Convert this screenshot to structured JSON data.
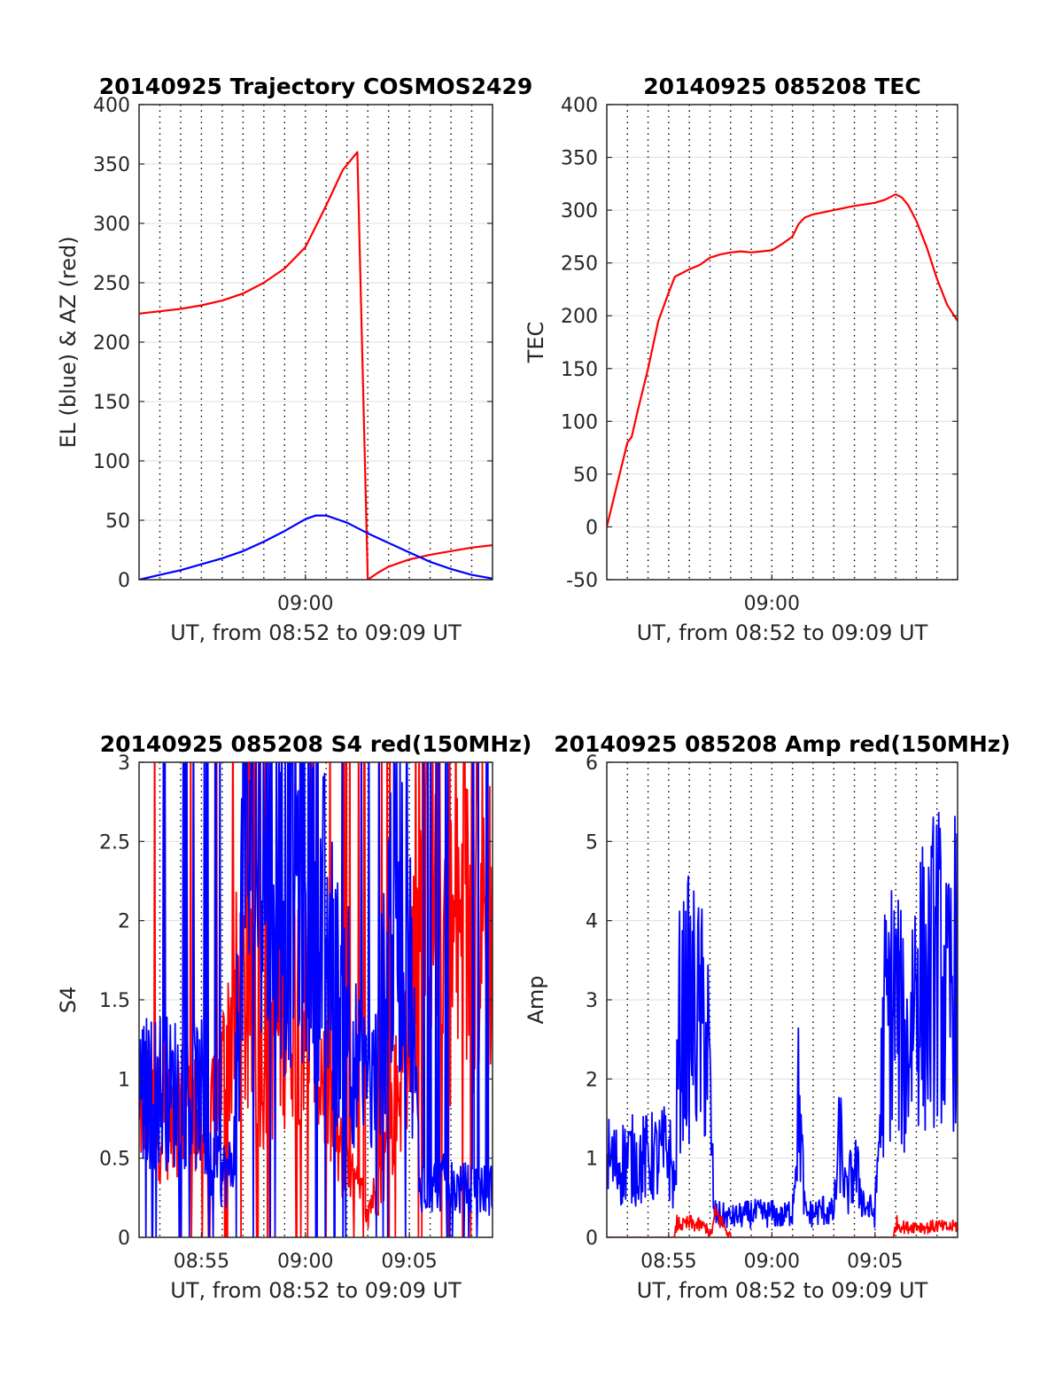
{
  "figure_title": "",
  "chart_data": [
    {
      "id": "trajectory",
      "type": "line",
      "title": "20140925 Trajectory COSMOS2429",
      "xlabel": "UT, from 08:52 to 09:09 UT",
      "ylabel": "EL (blue) & AZ (red)",
      "x_unit": "minutes since 08:52 UT",
      "xlim": [
        0,
        17
      ],
      "ylim": [
        0,
        400
      ],
      "yticks": [
        0,
        50,
        100,
        150,
        200,
        250,
        300,
        350,
        400
      ],
      "xtick_labels": [
        {
          "x": 8,
          "label": "09:00"
        }
      ],
      "grid": "on",
      "series": [
        {
          "color": "#ff0000",
          "x": [
            0,
            1,
            2,
            3,
            4,
            5,
            6,
            7,
            8,
            9,
            9.8,
            10.5,
            11,
            11.5,
            12,
            13,
            14,
            15,
            16,
            17
          ],
          "y": [
            224,
            226,
            228,
            231,
            235,
            241,
            250,
            262,
            280,
            315,
            345,
            360,
            0,
            6,
            11,
            17,
            21,
            24,
            27,
            29
          ]
        },
        {
          "color": "#0000ff",
          "x": [
            0,
            1,
            2,
            3,
            4,
            5,
            6,
            7,
            8,
            8.5,
            9,
            10,
            11,
            12,
            13,
            14,
            15,
            16,
            17
          ],
          "y": [
            0,
            4,
            8,
            13,
            18,
            24,
            32,
            41,
            51,
            54,
            54,
            48,
            39,
            31,
            23,
            15,
            9,
            4,
            1
          ]
        }
      ]
    },
    {
      "id": "tec",
      "type": "line",
      "title": "20140925 085208 TEC",
      "xlabel": "UT, from 08:52 to 09:09 UT",
      "ylabel": "TEC",
      "x_unit": "minutes since 08:52 UT",
      "xlim": [
        0,
        17
      ],
      "ylim": [
        -50,
        400
      ],
      "yticks": [
        -50,
        0,
        50,
        100,
        150,
        200,
        250,
        300,
        350,
        400
      ],
      "xtick_labels": [
        {
          "x": 8,
          "label": "09:00"
        }
      ],
      "grid": "on",
      "series": [
        {
          "color": "#ff0000",
          "x": [
            0,
            0.5,
            1,
            1.2,
            1.5,
            2,
            2.5,
            3,
            3.3,
            3.6,
            4,
            4.5,
            5,
            5.5,
            6,
            6.5,
            7,
            7.5,
            8,
            8.5,
            9,
            9.3,
            9.6,
            10,
            11,
            12,
            13,
            13.5,
            14,
            14.3,
            14.6,
            15,
            15.5,
            16,
            16.5,
            17
          ],
          "y": [
            0,
            40,
            80,
            85,
            110,
            150,
            195,
            222,
            237,
            240,
            244,
            248,
            255,
            258,
            260,
            261,
            260,
            261,
            262,
            268,
            275,
            287,
            293,
            296,
            300,
            304,
            307,
            310,
            315,
            312,
            305,
            290,
            265,
            235,
            210,
            195
          ]
        }
      ]
    },
    {
      "id": "s4",
      "type": "line",
      "title": "20140925 085208 S4 red(150MHz)",
      "xlabel": "UT, from 08:52 to 09:09 UT",
      "ylabel": "S4",
      "x_unit": "minutes since 08:52 UT",
      "xlim": [
        0,
        17
      ],
      "ylim": [
        0,
        3
      ],
      "yticks": [
        0,
        0.5,
        1,
        1.5,
        2,
        2.5,
        3
      ],
      "xtick_labels": [
        {
          "x": 3,
          "label": "08:55"
        },
        {
          "x": 8,
          "label": "09:00"
        },
        {
          "x": 13,
          "label": "09:05"
        }
      ],
      "grid": "on",
      "series": [
        {
          "color": "#ff0000",
          "style": "noisy",
          "x": [
            0,
            0.5,
            1,
            1.5,
            2,
            2.5,
            3,
            3.3,
            3.6,
            4,
            4.5,
            5,
            5.5,
            6,
            6.5,
            7,
            7.5,
            8,
            8.5,
            9,
            9.5,
            10,
            10.5,
            11,
            11.5,
            12,
            12.5,
            13,
            13.5,
            14,
            14.5,
            15,
            15.5,
            16,
            16.5,
            17
          ],
          "y": [
            0.85,
            0.8,
            0.75,
            0.8,
            0.85,
            0.8,
            0.7,
            0.5,
            0.8,
            1.0,
            1.4,
            1.5,
            1.3,
            1.2,
            1.3,
            1.5,
            1.6,
            1.5,
            1.2,
            1.0,
            0.6,
            0.4,
            0.3,
            0.2,
            0.3,
            0.6,
            1.0,
            1.5,
            2.0,
            2.2,
            2.0,
            1.8,
            1.9,
            2.0,
            2.1,
            2.0
          ]
        },
        {
          "color": "#0000ff",
          "style": "noisy",
          "x": [
            0,
            0.5,
            1,
            1.5,
            2,
            2.5,
            3,
            3.3,
            3.6,
            4,
            4.5,
            5,
            5.5,
            6,
            6.5,
            7,
            7.5,
            8,
            8.5,
            9,
            9.5,
            10,
            10.5,
            11,
            11.5,
            12,
            12.5,
            13,
            13.5,
            14,
            14.5,
            15,
            15.5,
            16,
            16.5,
            17
          ],
          "y": [
            0.95,
            0.9,
            0.95,
            0.9,
            0.95,
            0.9,
            0.9,
            0.45,
            0.42,
            0.4,
            0.42,
            2.3,
            2.5,
            2.4,
            2.4,
            2.2,
            2.4,
            2.3,
            2.1,
            1.9,
            1.5,
            1.6,
            1.0,
            0.9,
            1.0,
            2.0,
            2.2,
            1.8,
            0.35,
            0.33,
            0.35,
            0.32,
            0.3,
            0.32,
            0.3,
            0.3
          ]
        }
      ]
    },
    {
      "id": "amp",
      "type": "line",
      "title": "20140925 085208 Amp red(150MHz)",
      "xlabel": "UT, from 08:52 to 09:09 UT",
      "ylabel": "Amp",
      "x_unit": "minutes since 08:52 UT",
      "xlim": [
        0,
        17
      ],
      "ylim": [
        0,
        6
      ],
      "yticks": [
        0,
        1,
        2,
        3,
        4,
        5,
        6
      ],
      "xtick_labels": [
        {
          "x": 3,
          "label": "08:55"
        },
        {
          "x": 8,
          "label": "09:00"
        },
        {
          "x": 13,
          "label": "09:05"
        }
      ],
      "grid": "on",
      "series": [
        {
          "color": "#0000ff",
          "style": "noisy",
          "x": [
            0,
            0.5,
            1,
            1.5,
            2,
            2.5,
            3,
            3.3,
            3.5,
            4,
            4.5,
            4.9,
            5.2,
            6,
            7,
            8,
            8.5,
            9,
            9.3,
            9.6,
            10,
            10.5,
            11,
            11.3,
            11.6,
            12,
            12.5,
            13,
            13.5,
            14,
            14.5,
            15,
            15.5,
            16,
            16.5,
            17
          ],
          "y": [
            1.0,
            0.9,
            1.0,
            0.95,
            1.0,
            1.0,
            1.1,
            0.6,
            2.6,
            2.9,
            2.7,
            2.5,
            0.3,
            0.25,
            0.3,
            0.3,
            0.25,
            0.35,
            1.8,
            0.3,
            0.3,
            0.35,
            0.3,
            1.3,
            0.5,
            0.9,
            0.4,
            0.3,
            2.8,
            3.0,
            2.2,
            3.4,
            3.0,
            3.6,
            2.8,
            3.6
          ]
        },
        {
          "color": "#ff0000",
          "style": "noisy",
          "x": [
            0,
            3.3,
            3.4,
            3.7,
            4,
            4.5,
            4.9,
            5.0,
            5.3,
            6,
            13.9,
            14,
            14.5,
            15,
            15.5,
            16,
            16.5,
            17
          ],
          "y": [
            0,
            0,
            0.18,
            0.15,
            0.18,
            0.15,
            0.12,
            0,
            0.3,
            0,
            0,
            0.18,
            0.12,
            0.15,
            0.12,
            0.15,
            0.12,
            0.15
          ]
        }
      ]
    }
  ]
}
